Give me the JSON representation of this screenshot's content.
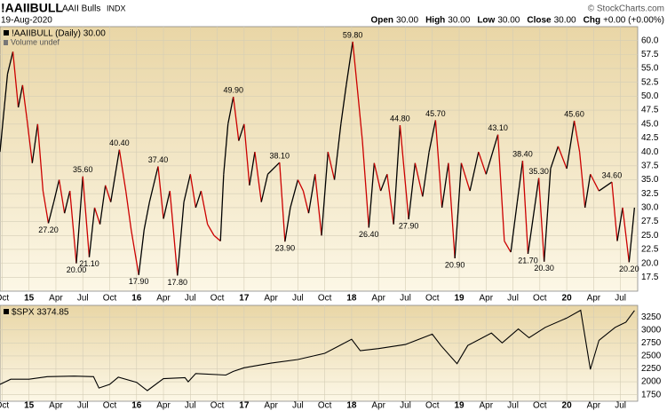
{
  "header": {
    "symbol": "!AAIIBULL",
    "name": "AAII Bulls",
    "exchange": "INDX",
    "copyright": "© StockCharts.com",
    "date": "19-Aug-2020",
    "quote": [
      {
        "label": "Open",
        "value": "30.00"
      },
      {
        "label": "High",
        "value": "30.00"
      },
      {
        "label": "Low",
        "value": "30.00"
      },
      {
        "label": "Close",
        "value": "30.00"
      },
      {
        "label": "Chg",
        "value": "+0.00 (+0.00%)"
      }
    ]
  },
  "chart_data": [
    {
      "type": "line",
      "legend": "!AAIIBULL (Daily) 30.00",
      "note": "Volume undef",
      "up_color": "#000000",
      "down_color": "#cc0000",
      "grid": true,
      "x": [
        2014.73,
        2014.77,
        2014.8,
        2014.85,
        2014.9,
        2014.94,
        2014.98,
        2015.03,
        2015.08,
        2015.13,
        2015.18,
        2015.23,
        2015.28,
        2015.33,
        2015.38,
        2015.44,
        2015.5,
        2015.56,
        2015.61,
        2015.66,
        2015.71,
        2015.76,
        2015.84,
        2015.9,
        2015.95,
        2016.02,
        2016.07,
        2016.12,
        2016.2,
        2016.25,
        2016.31,
        2016.38,
        2016.44,
        2016.5,
        2016.55,
        2016.6,
        2016.66,
        2016.72,
        2016.78,
        2016.81,
        2016.85,
        2016.9,
        2016.95,
        2017.0,
        2017.05,
        2017.1,
        2017.16,
        2017.22,
        2017.33,
        2017.38,
        2017.43,
        2017.5,
        2017.55,
        2017.6,
        2017.66,
        2017.72,
        2017.78,
        2017.84,
        2017.9,
        2017.95,
        2018.01,
        2018.06,
        2018.1,
        2018.16,
        2018.21,
        2018.27,
        2018.33,
        2018.39,
        2018.45,
        2018.53,
        2018.59,
        2018.66,
        2018.72,
        2018.78,
        2018.84,
        2018.9,
        2018.96,
        2019.02,
        2019.1,
        2019.18,
        2019.25,
        2019.36,
        2019.42,
        2019.48,
        2019.54,
        2019.59,
        2019.64,
        2019.74,
        2019.79,
        2019.85,
        2019.92,
        2020.0,
        2020.07,
        2020.12,
        2020.17,
        2020.22,
        2020.3,
        2020.42,
        2020.47,
        2020.52,
        2020.58,
        2020.61,
        2020.63
      ],
      "values": [
        40,
        48,
        54,
        58,
        48,
        52,
        46,
        38,
        45,
        33,
        27.2,
        31,
        35,
        29,
        33,
        20,
        35.6,
        21.1,
        30,
        27,
        34,
        31,
        40.4,
        33,
        26,
        17.9,
        26,
        31,
        37.4,
        28,
        33,
        17.8,
        31,
        36,
        30,
        33,
        27,
        25,
        24,
        36,
        45,
        49.9,
        42,
        45,
        34,
        40,
        31,
        36,
        38.1,
        23.9,
        30,
        35,
        33,
        29,
        36,
        25,
        40,
        35,
        45,
        52,
        59.8,
        50,
        42,
        26.4,
        38,
        33,
        36,
        27,
        44.8,
        27.9,
        38,
        32,
        40,
        45.7,
        30,
        38,
        20.9,
        38,
        33,
        40,
        36,
        43.1,
        24,
        22,
        31,
        38.4,
        21.7,
        35.3,
        20.3,
        37,
        41,
        37,
        45.6,
        40,
        30,
        36,
        33,
        34.6,
        24,
        30,
        20.2,
        26,
        30
      ],
      "value_labels": [
        null,
        null,
        null,
        null,
        null,
        null,
        null,
        null,
        null,
        null,
        "27.20",
        null,
        null,
        null,
        null,
        "20.00",
        "35.60",
        "21.10",
        null,
        null,
        null,
        null,
        "40.40",
        null,
        null,
        "17.90",
        null,
        null,
        "37.40",
        null,
        null,
        "17.80",
        null,
        null,
        null,
        null,
        null,
        null,
        null,
        null,
        null,
        "49.90",
        null,
        null,
        null,
        null,
        null,
        null,
        "38.10",
        "23.90",
        null,
        null,
        null,
        null,
        null,
        null,
        null,
        null,
        null,
        null,
        "59.80",
        null,
        null,
        "26.40",
        null,
        null,
        null,
        null,
        "44.80",
        "27.90",
        null,
        null,
        null,
        "45.70",
        null,
        null,
        "20.90",
        null,
        null,
        null,
        null,
        "43.10",
        null,
        null,
        null,
        "38.40",
        "21.70",
        "35.30",
        "20.30",
        null,
        null,
        null,
        "45.60",
        null,
        null,
        null,
        null,
        "34.60",
        null,
        null,
        "20.20",
        null,
        null
      ],
      "xlim": [
        2014.73,
        2020.66
      ],
      "ylim": [
        15,
        62.5
      ],
      "xticks": [
        {
          "value": 2014.75,
          "label": "Oct"
        },
        {
          "value": 2015,
          "label": "15"
        },
        {
          "value": 2015.25,
          "label": "Apr"
        },
        {
          "value": 2015.5,
          "label": "Jul"
        },
        {
          "value": 2015.75,
          "label": "Oct"
        },
        {
          "value": 2016,
          "label": "16"
        },
        {
          "value": 2016.25,
          "label": "Apr"
        },
        {
          "value": 2016.5,
          "label": "Jul"
        },
        {
          "value": 2016.75,
          "label": "Oct"
        },
        {
          "value": 2017,
          "label": "17"
        },
        {
          "value": 2017.25,
          "label": "Apr"
        },
        {
          "value": 2017.5,
          "label": "Jul"
        },
        {
          "value": 2017.75,
          "label": "Oct"
        },
        {
          "value": 2018,
          "label": "18"
        },
        {
          "value": 2018.25,
          "label": "Apr"
        },
        {
          "value": 2018.5,
          "label": "Jul"
        },
        {
          "value": 2018.75,
          "label": "Oct"
        },
        {
          "value": 2019,
          "label": "19"
        },
        {
          "value": 2019.25,
          "label": "Apr"
        },
        {
          "value": 2019.5,
          "label": "Jul"
        },
        {
          "value": 2019.75,
          "label": "Oct"
        },
        {
          "value": 2020,
          "label": "20"
        },
        {
          "value": 2020.25,
          "label": "Apr"
        },
        {
          "value": 2020.5,
          "label": "Jul"
        }
      ],
      "yticks": [
        17.5,
        {
          "value": 20,
          "label": "20.0"
        },
        22.5,
        {
          "value": 25,
          "label": "25.0"
        },
        27.5,
        {
          "value": 30,
          "label": "30.0"
        },
        32.5,
        {
          "value": 35,
          "label": "35.0"
        },
        37.5,
        {
          "value": 40,
          "label": "40.0"
        },
        42.5,
        {
          "value": 45,
          "label": "45.0"
        },
        47.5,
        {
          "value": 50,
          "label": "50.0"
        },
        52.5,
        {
          "value": 55,
          "label": "55.0"
        },
        57.5,
        {
          "value": 60,
          "label": "60.0"
        }
      ]
    },
    {
      "type": "line",
      "legend": "$SPX 3374.85",
      "color": "#000000",
      "grid": true,
      "x": [
        2014.73,
        2014.83,
        2015.0,
        2015.17,
        2015.42,
        2015.6,
        2015.65,
        2015.75,
        2015.83,
        2016.0,
        2016.1,
        2016.25,
        2016.45,
        2016.48,
        2016.55,
        2016.83,
        2016.9,
        2017.0,
        2017.25,
        2017.5,
        2017.75,
        2018.0,
        2018.08,
        2018.25,
        2018.5,
        2018.75,
        2018.83,
        2018.98,
        2019.08,
        2019.3,
        2019.4,
        2019.55,
        2019.65,
        2019.8,
        2020.0,
        2020.13,
        2020.22,
        2020.3,
        2020.45,
        2020.5,
        2020.55,
        2020.63
      ],
      "values": [
        1950,
        2050,
        2050,
        2100,
        2110,
        2100,
        1880,
        1950,
        2090,
        1990,
        1830,
        2060,
        2080,
        2000,
        2160,
        2130,
        2200,
        2270,
        2360,
        2430,
        2550,
        2820,
        2600,
        2640,
        2720,
        2920,
        2700,
        2350,
        2700,
        2940,
        2750,
        3020,
        2850,
        3050,
        3230,
        3380,
        2240,
        2800,
        3050,
        3100,
        3150,
        3375
      ],
      "xlim": [
        2014.73,
        2020.66
      ],
      "ylim": [
        1625,
        3475
      ],
      "xticks": [
        {
          "value": 2014.75,
          "label": "Oct"
        },
        {
          "value": 2015,
          "label": "15"
        },
        {
          "value": 2015.25,
          "label": "Apr"
        },
        {
          "value": 2015.5,
          "label": "Jul"
        },
        {
          "value": 2015.75,
          "label": "Oct"
        },
        {
          "value": 2016,
          "label": "16"
        },
        {
          "value": 2016.25,
          "label": "Apr"
        },
        {
          "value": 2016.5,
          "label": "Jul"
        },
        {
          "value": 2016.75,
          "label": "Oct"
        },
        {
          "value": 2017,
          "label": "17"
        },
        {
          "value": 2017.25,
          "label": "Apr"
        },
        {
          "value": 2017.5,
          "label": "Jul"
        },
        {
          "value": 2017.75,
          "label": "Oct"
        },
        {
          "value": 2018,
          "label": "18"
        },
        {
          "value": 2018.25,
          "label": "Apr"
        },
        {
          "value": 2018.5,
          "label": "Jul"
        },
        {
          "value": 2018.75,
          "label": "Oct"
        },
        {
          "value": 2019,
          "label": "19"
        },
        {
          "value": 2019.25,
          "label": "Apr"
        },
        {
          "value": 2019.5,
          "label": "Jul"
        },
        {
          "value": 2019.75,
          "label": "Oct"
        },
        {
          "value": 2020,
          "label": "20"
        },
        {
          "value": 2020.25,
          "label": "Apr"
        },
        {
          "value": 2020.5,
          "label": "Jul"
        }
      ],
      "yticks": [
        1750,
        2000,
        2250,
        2500,
        2750,
        3000,
        3250
      ]
    }
  ]
}
